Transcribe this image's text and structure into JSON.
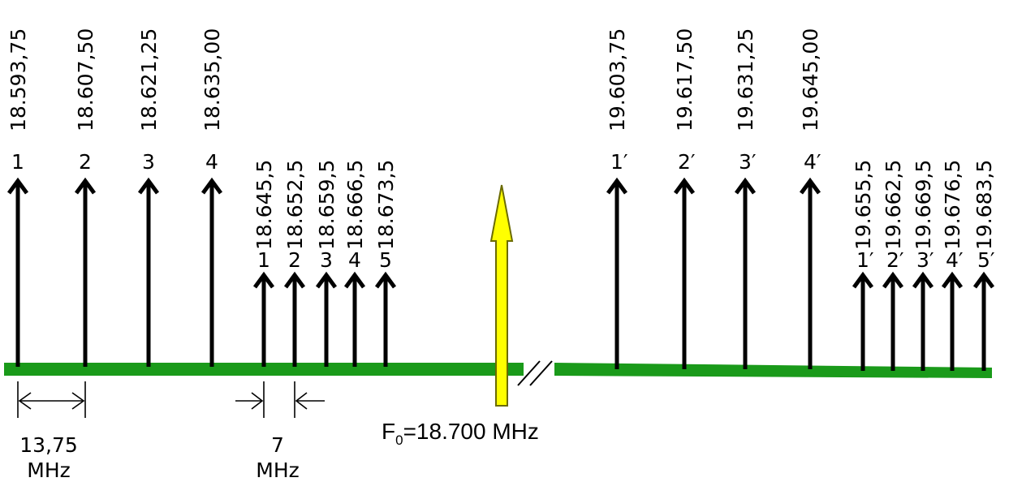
{
  "colors": {
    "baseline": "#1a9a1a",
    "carrier_fill": "#ffff00",
    "carrier_stroke": "#6b6b00",
    "arrow": "#000000"
  },
  "carrier": {
    "label_main": "F",
    "label_sub": "0",
    "label_rest": "=18.700 MHz"
  },
  "left_group": {
    "freqs": [
      "18.593,75",
      "18.607,50",
      "18.621,25",
      "18.635,00"
    ],
    "numbers": [
      "1",
      "2",
      "3",
      "4"
    ]
  },
  "left_small_group": {
    "freqs": [
      "18.645,5",
      "18.652,5",
      "18.659,5",
      "18.666,5",
      "18.673,5"
    ],
    "numbers": [
      "1",
      "2",
      "3",
      "4",
      "5"
    ]
  },
  "right_group": {
    "freqs": [
      "19.603,75",
      "19.617,50",
      "19.631,25",
      "19.645,00"
    ],
    "numbers": [
      "1′",
      "2′",
      "3′",
      "4′"
    ]
  },
  "right_small_group": {
    "freqs": [
      "19.655,5",
      "19.662,5",
      "19.669,5",
      "19.676,5",
      "19.683,5"
    ],
    "numbers": [
      "1′",
      "2′",
      "3′",
      "4′",
      "5′"
    ]
  },
  "spacing_wide": {
    "value": "13,75",
    "unit": "MHz"
  },
  "spacing_narrow": {
    "value": "7",
    "unit": "MHz"
  }
}
